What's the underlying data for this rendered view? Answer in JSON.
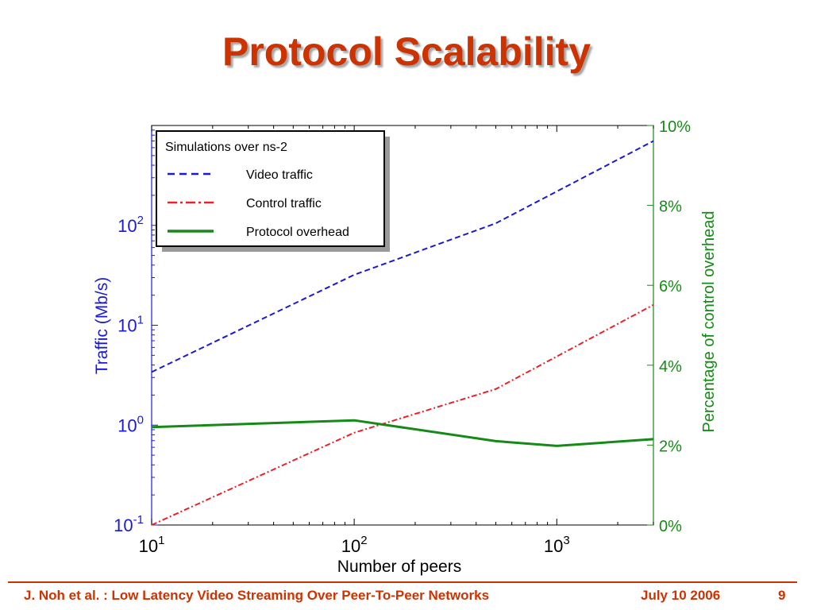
{
  "slide": {
    "title": "Protocol Scalability",
    "footer": {
      "left": "J. Noh et al. : Low Latency Video Streaming Over Peer-To-Peer Networks",
      "date": "July 10 2006",
      "page": "9"
    }
  },
  "colors": {
    "title": "#cc3300",
    "video": "#1a1ad6",
    "control": "#e8222a",
    "overhead": "#168a16",
    "left_axis": "#1a1ad6",
    "right_axis": "#168a16"
  },
  "chart_data": {
    "type": "line",
    "xlabel": "Number of peers",
    "ylabel": "Traffic (Mb/s)",
    "y2label": "Percentage of control overhead",
    "x_scale": "log",
    "y_scale": "log",
    "xlim": [
      10,
      3000
    ],
    "ylim": [
      0.1,
      1000
    ],
    "y2lim": [
      0,
      10
    ],
    "x_ticks": [
      10,
      100,
      1000
    ],
    "y_ticks": [
      0.1,
      1,
      10,
      100
    ],
    "y2_ticks": [
      "0%",
      "2%",
      "4%",
      "6%",
      "8%",
      "10%"
    ],
    "grid": false,
    "legend": {
      "position": "top-left",
      "title": "Simulations over ns-2",
      "entries": [
        "Video traffic",
        "Control traffic",
        "Protocol overhead"
      ]
    },
    "series": [
      {
        "name": "Video traffic",
        "axis": "left",
        "style": "dashed",
        "x": [
          10,
          100,
          500,
          3000
        ],
        "y": [
          3.4,
          32,
          105,
          700
        ]
      },
      {
        "name": "Control traffic",
        "axis": "left",
        "style": "dash-dot",
        "x": [
          10,
          100,
          500,
          3000
        ],
        "y": [
          0.1,
          0.84,
          2.3,
          16
        ]
      },
      {
        "name": "Protocol overhead",
        "axis": "right",
        "style": "solid",
        "x": [
          10,
          100,
          500,
          1000,
          3000
        ],
        "y": [
          2.45,
          2.62,
          2.1,
          1.98,
          2.15
        ]
      }
    ]
  }
}
